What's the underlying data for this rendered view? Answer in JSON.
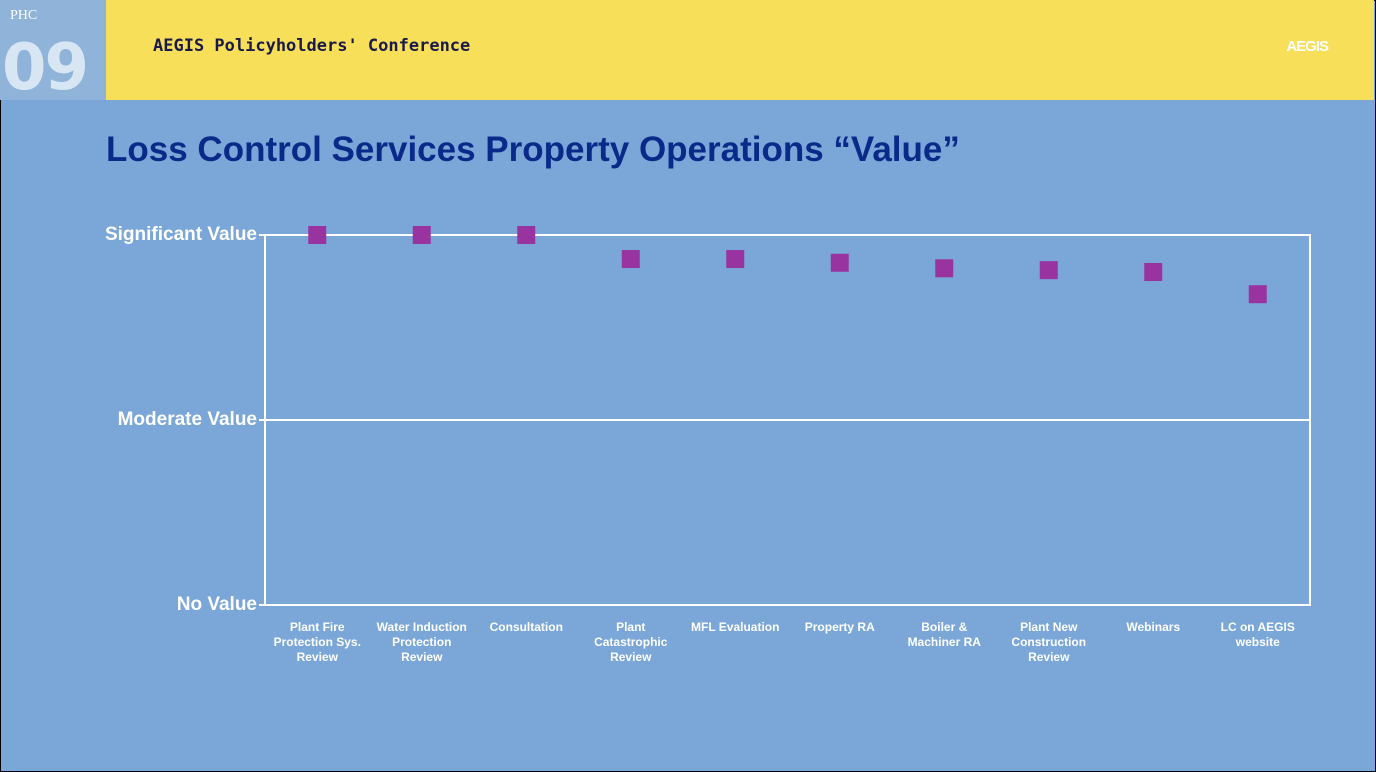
{
  "header": {
    "badge_top": "PHC",
    "badge_number": "09",
    "conference": "AEGIS Policyholders' Conference",
    "brand": "AEGIS"
  },
  "chart_data": {
    "type": "scatter",
    "title": "Loss Control Services Property Operations “Value”",
    "categories": [
      "Plant Fire Protection Sys. Review",
      "Water Induction Protection Review",
      "Consultation",
      "Plant Catastrophic Review",
      "MFL Evaluation",
      "Property RA",
      "Boiler & Machiner RA",
      "Plant New Construction Review",
      "Webinars",
      "LC on AEGIS website"
    ],
    "values": [
      3,
      3,
      3,
      2.87,
      2.87,
      2.85,
      2.82,
      2.81,
      2.8,
      2.68
    ],
    "color": "#99339f",
    "ylim": [
      1,
      3
    ],
    "yticks": [
      {
        "value": 1,
        "label": "No Value"
      },
      {
        "value": 2,
        "label": "Moderate Value"
      },
      {
        "value": 3,
        "label": "Significant Value"
      }
    ],
    "grid": true
  }
}
